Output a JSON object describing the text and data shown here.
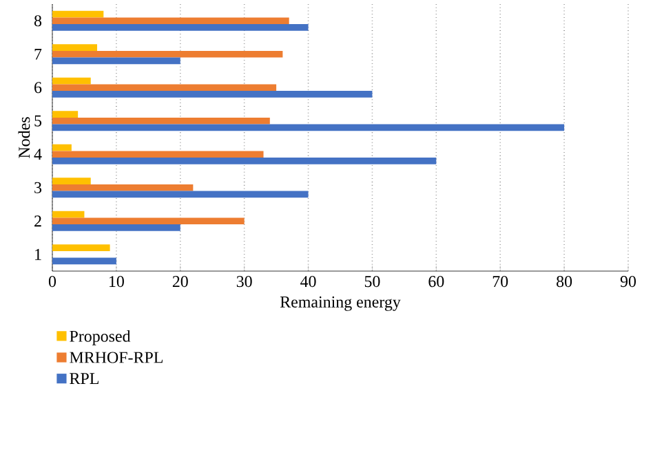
{
  "chart_data": {
    "type": "bar",
    "orientation": "horizontal",
    "categories": [
      "8",
      "7",
      "6",
      "5",
      "4",
      "3",
      "2",
      "1"
    ],
    "series": [
      {
        "name": "Proposed",
        "color": "#ffc000",
        "values": [
          8,
          7,
          6,
          4,
          3,
          6,
          5,
          9
        ]
      },
      {
        "name": "MRHOF-RPL",
        "color": "#ed7d31",
        "values": [
          37,
          36,
          35,
          34,
          33,
          22,
          30,
          0
        ]
      },
      {
        "name": "RPL",
        "color": "#4472c4",
        "values": [
          40,
          20,
          50,
          80,
          60,
          40,
          20,
          10
        ]
      }
    ],
    "xlabel": "Remaining energy",
    "ylabel": "Nodes",
    "xlim": [
      0,
      90
    ],
    "xticks": [
      0,
      10,
      20,
      30,
      40,
      50,
      60,
      70,
      80,
      90
    ],
    "grid": "x",
    "legend": "bottom"
  }
}
